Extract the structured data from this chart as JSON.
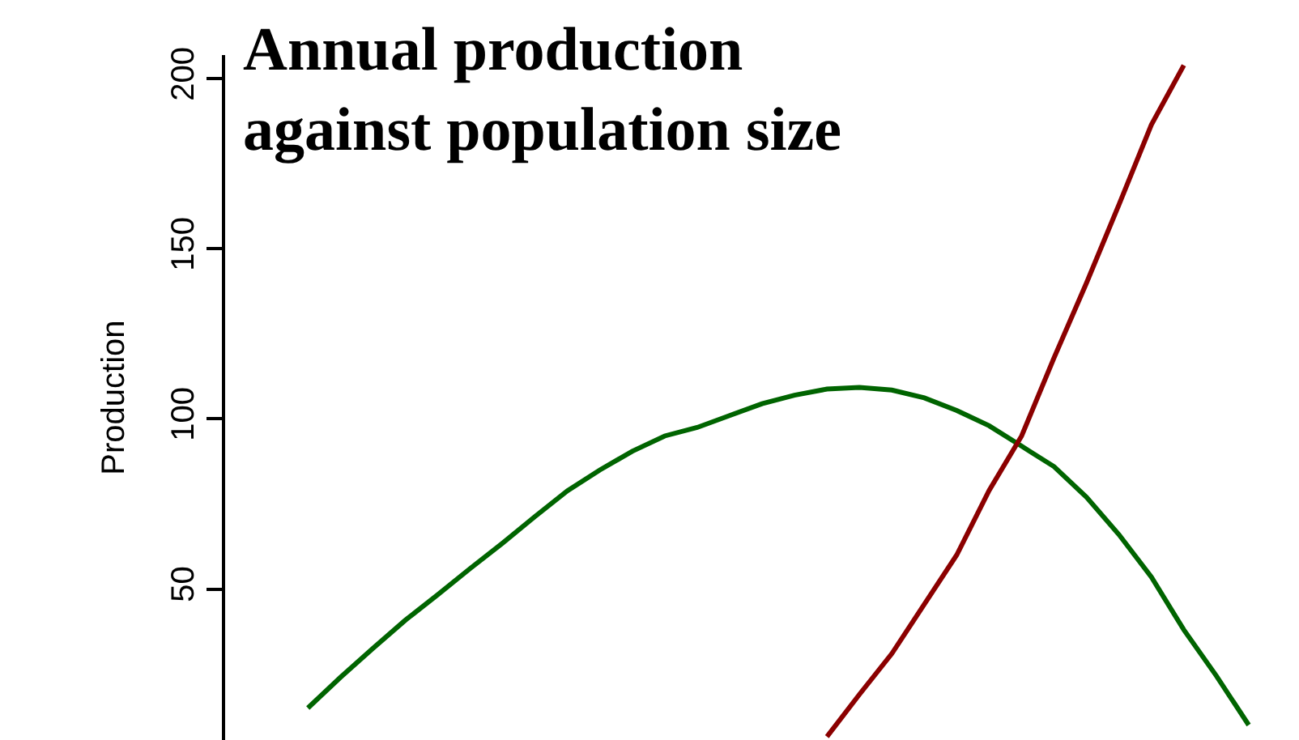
{
  "chart_data": {
    "type": "line",
    "title": "Annual production\nagainst population size",
    "ylabel": "Production",
    "categories": [
      null,
      null,
      null,
      null,
      null,
      null,
      null,
      null,
      null,
      null,
      null,
      null,
      null,
      null,
      null,
      null,
      null,
      null,
      null,
      null,
      null,
      null,
      null,
      null,
      null,
      null,
      null,
      null,
      null,
      null,
      null,
      null,
      null
    ],
    "series": [
      {
        "color": "#006400",
        "values": [
          null,
          null,
          15,
          24,
          32.5,
          40.8,
          48.3,
          56,
          63.5,
          71.3,
          78.9,
          85,
          90.5,
          95,
          97.5,
          101,
          104.5,
          107,
          108.8,
          109.3,
          108.5,
          106.2,
          102.5,
          98,
          92,
          86,
          77,
          66,
          53.5,
          38,
          24.5,
          10,
          null
        ]
      },
      {
        "color": "#8b0000",
        "values": [
          null,
          null,
          null,
          null,
          null,
          null,
          null,
          null,
          null,
          null,
          null,
          null,
          null,
          null,
          null,
          null,
          null,
          null,
          6.6,
          19,
          31,
          45.5,
          60,
          79,
          95,
          118,
          140,
          163,
          186.5,
          204,
          null,
          null,
          null
        ]
      }
    ],
    "ylim": [
      5.6,
      207
    ],
    "yticks": [
      50,
      100,
      150,
      200
    ],
    "tick_labels": "y",
    "marker": "none",
    "line_style": "solid"
  }
}
